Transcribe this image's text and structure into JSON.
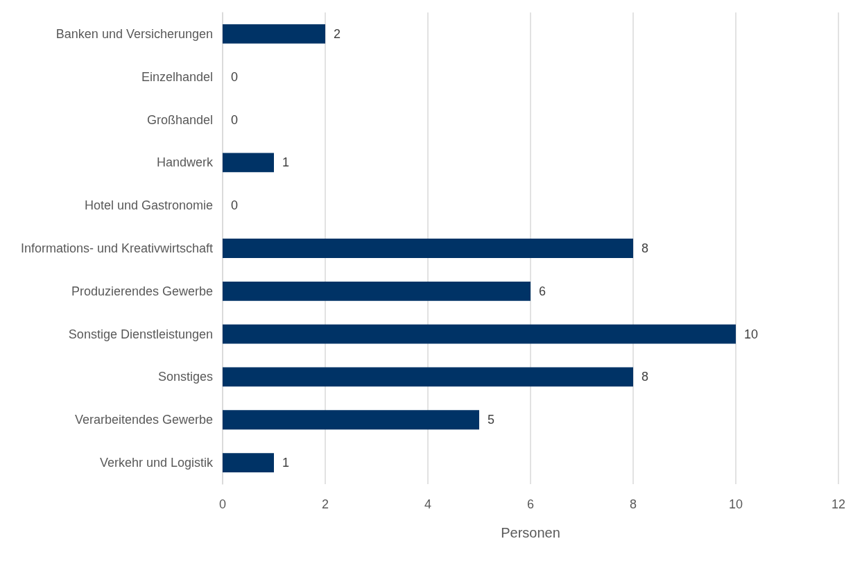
{
  "chart_data": {
    "type": "bar",
    "orientation": "horizontal",
    "xlabel": "Personen",
    "categories": [
      "Banken und Versicherungen",
      "Einzelhandel",
      "Großhandel",
      "Handwerk",
      "Hotel und Gastronomie",
      "Informations- und Kreativwirtschaft",
      "Produzierendes Gewerbe",
      "Sonstige Dienstleistungen",
      "Sonstiges",
      "Verarbeitendes Gewerbe",
      "Verkehr und Logistik"
    ],
    "values": [
      2,
      0,
      0,
      1,
      0,
      8,
      6,
      10,
      8,
      5,
      1
    ],
    "color": "#003366",
    "xlim": [
      0,
      12
    ],
    "xticks": [
      0,
      2,
      4,
      6,
      8,
      10,
      12
    ],
    "grid": "x",
    "data_labels": true
  }
}
